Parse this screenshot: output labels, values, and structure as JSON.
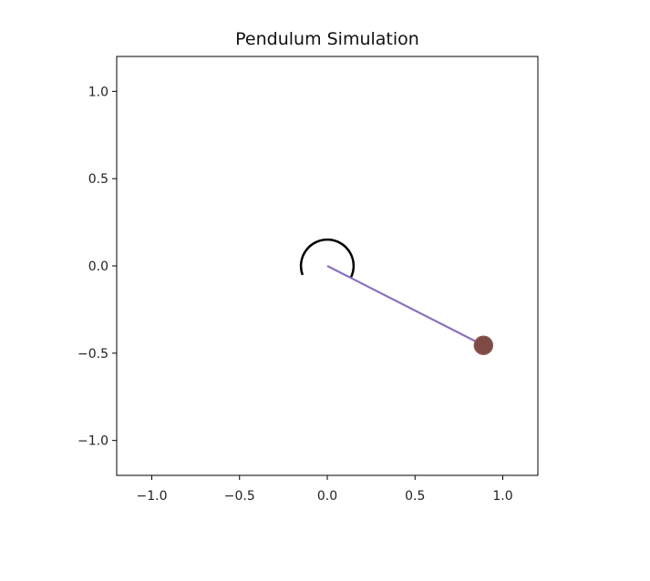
{
  "chart_data": {
    "type": "scatter",
    "title": "Pendulum Simulation",
    "xlabel": "",
    "ylabel": "",
    "xlim": [
      -1.2,
      1.2
    ],
    "ylim": [
      -1.2,
      1.2
    ],
    "grid": false,
    "legend": "none",
    "x_ticks": [
      -1.0,
      -0.5,
      0.0,
      0.5,
      1.0
    ],
    "x_tick_labels": [
      "−1.0",
      "−0.5",
      "0.0",
      "0.5",
      "1.0"
    ],
    "y_ticks": [
      1.0,
      0.5,
      0.0,
      -0.5,
      -1.0
    ],
    "y_tick_labels": [
      "1.0",
      "0.5",
      "0.0",
      "−0.5",
      "−1.0"
    ],
    "pivot": {
      "x": 0.0,
      "y": 0.0
    },
    "bob": {
      "x": 0.89,
      "y": -0.455
    },
    "angle_arc": {
      "center": [
        0.0,
        0.0
      ],
      "radius": 0.15,
      "start_deg": -27,
      "end_deg": 200
    },
    "colors": {
      "rod": "#8c6fbf",
      "bob_fill": "#7d4a44",
      "bob_edge": "#8b5a54",
      "arc": "#000000",
      "frame": "#000000"
    }
  }
}
